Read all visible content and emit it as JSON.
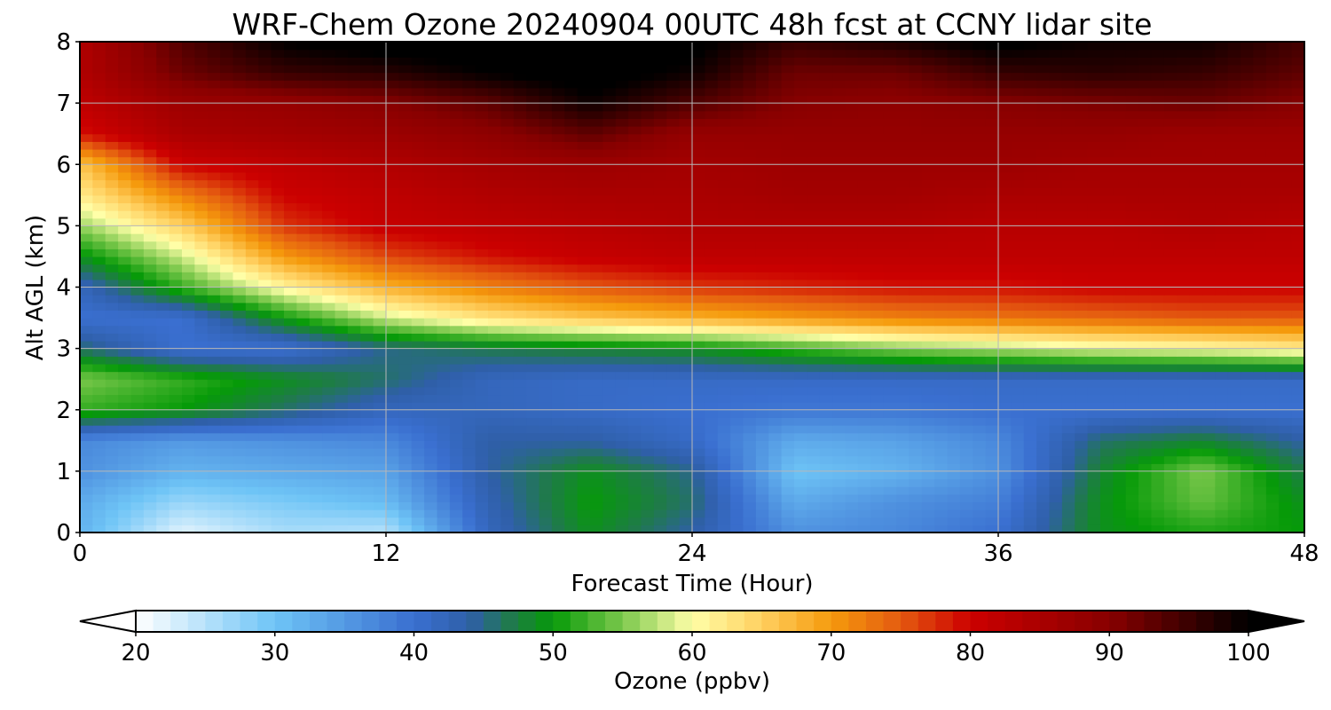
{
  "chart_data": {
    "type": "heatmap",
    "title": "WRF-Chem Ozone  20240904 00UTC 48h fcst at CCNY lidar site",
    "xlabel": "Forecast Time (Hour)",
    "ylabel": "Alt AGL (km)",
    "xlim": [
      0,
      48
    ],
    "ylim": [
      0,
      8
    ],
    "x_ticks": [
      "0",
      "12",
      "24",
      "36",
      "48"
    ],
    "y_ticks": [
      "0",
      "1",
      "2",
      "3",
      "4",
      "5",
      "6",
      "7",
      "8"
    ],
    "grid": true,
    "x": [
      0,
      4,
      8,
      12,
      16,
      20,
      24,
      28,
      32,
      36,
      40,
      44,
      48
    ],
    "y": [
      0,
      0.5,
      1,
      1.5,
      2,
      2.5,
      3,
      3.5,
      4,
      4.5,
      5,
      5.5,
      6,
      6.5,
      7,
      7.5,
      8
    ],
    "z": [
      [
        32,
        22,
        26,
        25,
        42,
        49,
        44,
        36,
        37,
        40,
        49,
        51,
        50
      ],
      [
        33,
        27,
        29,
        31,
        43,
        50,
        46,
        33,
        36,
        38,
        49,
        54,
        49
      ],
      [
        36,
        32,
        33,
        34,
        44,
        49,
        45,
        30,
        32,
        36,
        48,
        55,
        47
      ],
      [
        37,
        35,
        36,
        37,
        44,
        44,
        41,
        33,
        34,
        37,
        46,
        48,
        44
      ],
      [
        52,
        50,
        46,
        42,
        42,
        41,
        40,
        39,
        39,
        40,
        40,
        40,
        40
      ],
      [
        55,
        52,
        49,
        46,
        42,
        41,
        41,
        41,
        41,
        41,
        41,
        41,
        41
      ],
      [
        46,
        40,
        40,
        45,
        47,
        48,
        49,
        52,
        55,
        57,
        59,
        60,
        62
      ],
      [
        40,
        40,
        50,
        58,
        63,
        66,
        68,
        70,
        72,
        73,
        74,
        75,
        75
      ],
      [
        42,
        52,
        61,
        68,
        72,
        75,
        77,
        78,
        79,
        79,
        80,
        80,
        80
      ],
      [
        49,
        58,
        70,
        76,
        79,
        81,
        82,
        82,
        82,
        82,
        82,
        82,
        82
      ],
      [
        56,
        65,
        77,
        81,
        82,
        83,
        84,
        84,
        84,
        83,
        83,
        84,
        83
      ],
      [
        62,
        72,
        80,
        82,
        84,
        85,
        85,
        86,
        86,
        85,
        85,
        85,
        85
      ],
      [
        66,
        80,
        82,
        84,
        86,
        87,
        86,
        87,
        87,
        87,
        86,
        86,
        86
      ],
      [
        79,
        85,
        86,
        87,
        89,
        93,
        88,
        88,
        88,
        88,
        88,
        87,
        87
      ],
      [
        82,
        87,
        88,
        90,
        93,
        99,
        94,
        90,
        89,
        90,
        91,
        92,
        90
      ],
      [
        84,
        92,
        96,
        97,
        100,
        102,
        99,
        92,
        92,
        96,
        97,
        96,
        93
      ],
      [
        84,
        94,
        100,
        102,
        102,
        102,
        101,
        96,
        98,
        101,
        99,
        99,
        95
      ]
    ],
    "colorbar": {
      "label": "Ozone  (ppbv)",
      "min": 20,
      "max": 100,
      "ticks": [
        "20",
        "30",
        "40",
        "50",
        "60",
        "70",
        "80",
        "90",
        "100"
      ],
      "extend": "both",
      "color_stops": [
        [
          20,
          "#ffffff"
        ],
        [
          30,
          "#6ec4f6"
        ],
        [
          40,
          "#3a6fd0"
        ],
        [
          44,
          "#2f5fa8"
        ],
        [
          47,
          "#1f7a4a"
        ],
        [
          50,
          "#069a08"
        ],
        [
          55,
          "#7cc84c"
        ],
        [
          60,
          "#ffffa8"
        ],
        [
          65,
          "#ffd060"
        ],
        [
          70,
          "#f59a0c"
        ],
        [
          75,
          "#e45a10"
        ],
        [
          80,
          "#cc0000"
        ],
        [
          90,
          "#880000"
        ],
        [
          100,
          "#000000"
        ]
      ]
    }
  }
}
